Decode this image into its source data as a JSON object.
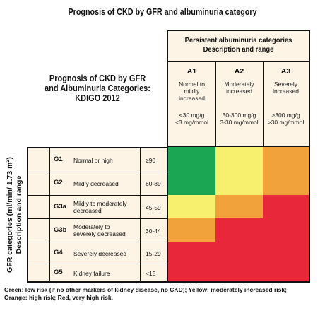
{
  "page_title": "Prognosis of CKD by GFR and albuminuria category",
  "left_title": {
    "line1": "Prognosis of CKD by GFR",
    "line2": "and Albuminuria Categories:",
    "line3": "KDIGO 2012"
  },
  "persistent_header": {
    "line1": "Persistent albuminuria categories",
    "line2": "Description and range"
  },
  "albuminuria_categories": [
    {
      "code": "A1",
      "desc_line1": "Normal to",
      "desc_line2": "mildly",
      "desc_line3": "increased",
      "range_line1": "<30 mg/g",
      "range_line2": "<3 mg/mmol"
    },
    {
      "code": "A2",
      "desc_line1": "Moderately",
      "desc_line2": "increased",
      "desc_line3": "",
      "range_line1": "30-300 mg/g",
      "range_line2": "3-30 mg/mmol"
    },
    {
      "code": "A3",
      "desc_line1": "Severely",
      "desc_line2": "increased",
      "desc_line3": "",
      "range_line1": ">300 mg/g",
      "range_line2": ">30 mg/mmol"
    }
  ],
  "gfr_axis_label": {
    "line1_main": "GFR categories (ml/min/ 1.73 m",
    "line1_sup": "2",
    "line1_end": ")",
    "line2": "Description and range"
  },
  "gfr_categories": [
    {
      "code": "G1",
      "desc_line1": "Normal or high",
      "desc_line2": "",
      "range": "≥90"
    },
    {
      "code": "G2",
      "desc_line1": "Mildly decreased",
      "desc_line2": "",
      "range": "60-89"
    },
    {
      "code": "G3a",
      "desc_line1": "Mildly to moderately",
      "desc_line2": "decreased",
      "range": "45-59"
    },
    {
      "code": "G3b",
      "desc_line1": "Moderately to",
      "desc_line2": "severely decreased",
      "range": "30-44"
    },
    {
      "code": "G4",
      "desc_line1": "Severely decreased",
      "desc_line2": "",
      "range": "15-29"
    },
    {
      "code": "G5",
      "desc_line1": "Kidney failure",
      "desc_line2": "",
      "range": "<15"
    }
  ],
  "risk_colors": {
    "green": "#1aa653",
    "yellow": "#f7ef6e",
    "orange": "#f2a23a",
    "red": "#e8283a"
  },
  "risk_grid": [
    [
      "green",
      "yellow",
      "orange"
    ],
    [
      "green",
      "yellow",
      "orange"
    ],
    [
      "yellow",
      "orange",
      "red"
    ],
    [
      "orange",
      "red",
      "red"
    ],
    [
      "red",
      "red",
      "red"
    ],
    [
      "red",
      "red",
      "red"
    ]
  ],
  "footnote": {
    "line1": "Green: low risk (if no other markers of kidney disease, no CKD); Yellow: moderately increased risk;",
    "line2": "Orange: high risk; Red, very high risk."
  }
}
